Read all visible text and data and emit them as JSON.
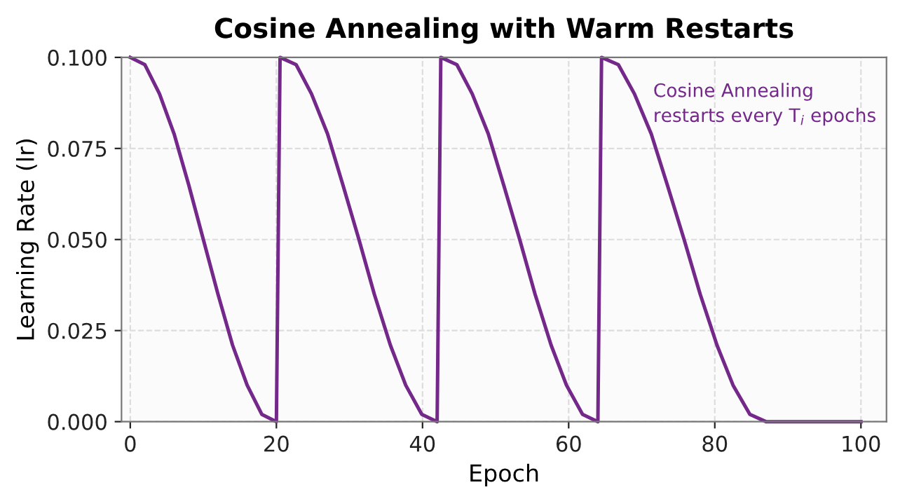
{
  "chart_data": {
    "type": "line",
    "title": "Cosine Annealing with Warm Restarts",
    "xlabel": "Epoch",
    "ylabel": "Learning Rate (lr)",
    "x": [
      0,
      2,
      4,
      6,
      8,
      10,
      12,
      14,
      16,
      18,
      20,
      20.5,
      22.7,
      24.8,
      27.0,
      29.1,
      31.3,
      33.4,
      35.6,
      37.7,
      39.9,
      42.0,
      42.5,
      44.7,
      46.8,
      49.0,
      51.1,
      53.3,
      55.4,
      57.6,
      59.7,
      61.9,
      64.0,
      64.5,
      66.8,
      69.0,
      71.3,
      73.5,
      75.8,
      78.0,
      80.3,
      82.5,
      84.8,
      87.0,
      100
    ],
    "series": [
      {
        "color": "#74288a",
        "values": [
          0.1,
          0.098,
          0.09,
          0.079,
          0.065,
          0.05,
          0.035,
          0.021,
          0.01,
          0.002,
          0.0,
          0.1,
          0.098,
          0.09,
          0.079,
          0.065,
          0.05,
          0.035,
          0.021,
          0.01,
          0.002,
          0.0,
          0.1,
          0.098,
          0.09,
          0.079,
          0.065,
          0.05,
          0.035,
          0.021,
          0.01,
          0.002,
          0.0,
          0.1,
          0.098,
          0.09,
          0.079,
          0.065,
          0.05,
          0.035,
          0.021,
          0.01,
          0.002,
          0.0,
          0.0
        ]
      }
    ],
    "xlim": [
      -1.2,
      103.5
    ],
    "ylim": [
      0,
      0.1
    ],
    "xticks": [
      0,
      20,
      40,
      60,
      80,
      100
    ],
    "yticks": [
      {
        "value": 0,
        "label": "0.000"
      },
      {
        "value": 0.025,
        "label": "0.025"
      },
      {
        "value": 0.05,
        "label": "0.050"
      },
      {
        "value": 0.075,
        "label": "0.075"
      },
      {
        "value": 0.1,
        "label": "0.100"
      }
    ],
    "annotations": [
      "Cosine Annealing\nrestarts every T$_{i}$ epochs"
    ],
    "grid": true,
    "line_style": "solid",
    "marker": "none",
    "legend": false
  }
}
